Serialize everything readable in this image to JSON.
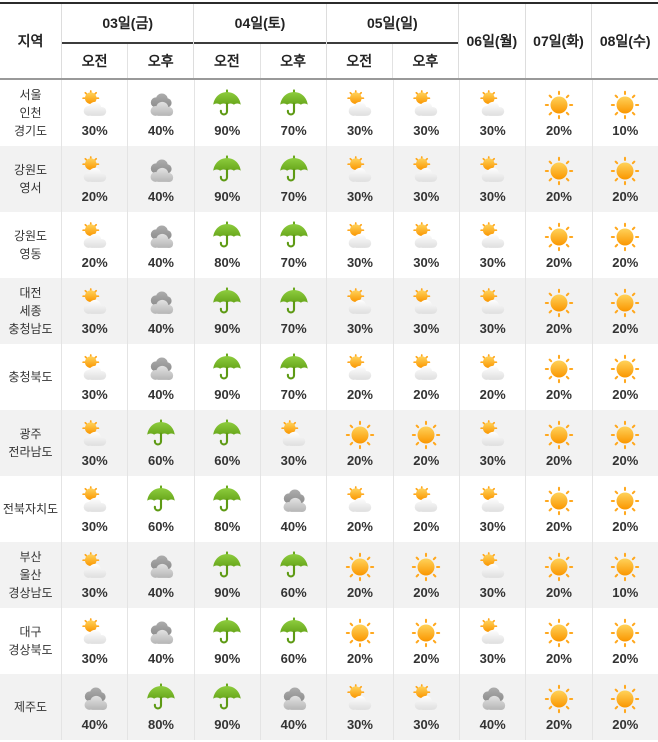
{
  "table": {
    "region_header": "지역",
    "day_groups": [
      {
        "label": "03일(금)",
        "sub": [
          "오전",
          "오후"
        ]
      },
      {
        "label": "04일(토)",
        "sub": [
          "오전",
          "오후"
        ]
      },
      {
        "label": "05일(일)",
        "sub": [
          "오전",
          "오후"
        ]
      }
    ],
    "single_days": [
      "06일(월)",
      "07일(화)",
      "08일(수)"
    ],
    "rows": [
      {
        "region": [
          "서울",
          "인천",
          "경기도"
        ],
        "cells": [
          {
            "icon": "partly-cloudy",
            "value": "30%"
          },
          {
            "icon": "cloudy",
            "value": "40%"
          },
          {
            "icon": "rain-umbrella",
            "value": "90%"
          },
          {
            "icon": "rain-umbrella",
            "value": "70%"
          },
          {
            "icon": "partly-cloudy",
            "value": "30%"
          },
          {
            "icon": "partly-cloudy",
            "value": "30%"
          },
          {
            "icon": "partly-cloudy",
            "value": "30%"
          },
          {
            "icon": "sunny",
            "value": "20%"
          },
          {
            "icon": "sunny",
            "value": "10%"
          }
        ]
      },
      {
        "region": [
          "강원도",
          "영서"
        ],
        "cells": [
          {
            "icon": "partly-cloudy",
            "value": "20%"
          },
          {
            "icon": "cloudy",
            "value": "40%"
          },
          {
            "icon": "rain-umbrella",
            "value": "90%"
          },
          {
            "icon": "rain-umbrella",
            "value": "70%"
          },
          {
            "icon": "partly-cloudy",
            "value": "30%"
          },
          {
            "icon": "partly-cloudy",
            "value": "30%"
          },
          {
            "icon": "partly-cloudy",
            "value": "30%"
          },
          {
            "icon": "sunny",
            "value": "20%"
          },
          {
            "icon": "sunny",
            "value": "20%"
          }
        ]
      },
      {
        "region": [
          "강원도",
          "영동"
        ],
        "cells": [
          {
            "icon": "partly-cloudy",
            "value": "20%"
          },
          {
            "icon": "cloudy",
            "value": "40%"
          },
          {
            "icon": "rain-umbrella",
            "value": "80%"
          },
          {
            "icon": "rain-umbrella",
            "value": "70%"
          },
          {
            "icon": "partly-cloudy",
            "value": "30%"
          },
          {
            "icon": "partly-cloudy",
            "value": "30%"
          },
          {
            "icon": "partly-cloudy",
            "value": "30%"
          },
          {
            "icon": "sunny",
            "value": "20%"
          },
          {
            "icon": "sunny",
            "value": "20%"
          }
        ]
      },
      {
        "region": [
          "대전",
          "세종",
          "충청남도"
        ],
        "cells": [
          {
            "icon": "partly-cloudy",
            "value": "30%"
          },
          {
            "icon": "cloudy",
            "value": "40%"
          },
          {
            "icon": "rain-umbrella",
            "value": "90%"
          },
          {
            "icon": "rain-umbrella",
            "value": "70%"
          },
          {
            "icon": "partly-cloudy",
            "value": "30%"
          },
          {
            "icon": "partly-cloudy",
            "value": "30%"
          },
          {
            "icon": "partly-cloudy",
            "value": "30%"
          },
          {
            "icon": "sunny",
            "value": "20%"
          },
          {
            "icon": "sunny",
            "value": "20%"
          }
        ]
      },
      {
        "region": [
          "충청북도"
        ],
        "cells": [
          {
            "icon": "partly-cloudy",
            "value": "30%"
          },
          {
            "icon": "cloudy",
            "value": "40%"
          },
          {
            "icon": "rain-umbrella",
            "value": "90%"
          },
          {
            "icon": "rain-umbrella",
            "value": "70%"
          },
          {
            "icon": "partly-cloudy",
            "value": "20%"
          },
          {
            "icon": "partly-cloudy",
            "value": "20%"
          },
          {
            "icon": "partly-cloudy",
            "value": "20%"
          },
          {
            "icon": "sunny",
            "value": "20%"
          },
          {
            "icon": "sunny",
            "value": "20%"
          }
        ]
      },
      {
        "region": [
          "광주",
          "전라남도"
        ],
        "cells": [
          {
            "icon": "partly-cloudy",
            "value": "30%"
          },
          {
            "icon": "rain-umbrella",
            "value": "60%"
          },
          {
            "icon": "rain-umbrella",
            "value": "60%"
          },
          {
            "icon": "partly-cloudy",
            "value": "30%"
          },
          {
            "icon": "sunny",
            "value": "20%"
          },
          {
            "icon": "sunny",
            "value": "20%"
          },
          {
            "icon": "partly-cloudy",
            "value": "30%"
          },
          {
            "icon": "sunny",
            "value": "20%"
          },
          {
            "icon": "sunny",
            "value": "20%"
          }
        ]
      },
      {
        "region": [
          "전북자치도"
        ],
        "cells": [
          {
            "icon": "partly-cloudy",
            "value": "30%"
          },
          {
            "icon": "rain-umbrella",
            "value": "60%"
          },
          {
            "icon": "rain-umbrella",
            "value": "80%"
          },
          {
            "icon": "cloudy",
            "value": "40%"
          },
          {
            "icon": "partly-cloudy",
            "value": "20%"
          },
          {
            "icon": "partly-cloudy",
            "value": "20%"
          },
          {
            "icon": "partly-cloudy",
            "value": "30%"
          },
          {
            "icon": "sunny",
            "value": "20%"
          },
          {
            "icon": "sunny",
            "value": "20%"
          }
        ]
      },
      {
        "region": [
          "부산",
          "울산",
          "경상남도"
        ],
        "cells": [
          {
            "icon": "partly-cloudy",
            "value": "30%"
          },
          {
            "icon": "cloudy",
            "value": "40%"
          },
          {
            "icon": "rain-umbrella",
            "value": "90%"
          },
          {
            "icon": "rain-umbrella",
            "value": "60%"
          },
          {
            "icon": "sunny",
            "value": "20%"
          },
          {
            "icon": "sunny",
            "value": "20%"
          },
          {
            "icon": "partly-cloudy",
            "value": "30%"
          },
          {
            "icon": "sunny",
            "value": "20%"
          },
          {
            "icon": "sunny",
            "value": "10%"
          }
        ]
      },
      {
        "region": [
          "대구",
          "경상북도"
        ],
        "cells": [
          {
            "icon": "partly-cloudy",
            "value": "30%"
          },
          {
            "icon": "cloudy",
            "value": "40%"
          },
          {
            "icon": "rain-umbrella",
            "value": "90%"
          },
          {
            "icon": "rain-umbrella",
            "value": "60%"
          },
          {
            "icon": "sunny",
            "value": "20%"
          },
          {
            "icon": "sunny",
            "value": "20%"
          },
          {
            "icon": "partly-cloudy",
            "value": "30%"
          },
          {
            "icon": "sunny",
            "value": "20%"
          },
          {
            "icon": "sunny",
            "value": "20%"
          }
        ]
      },
      {
        "region": [
          "제주도"
        ],
        "cells": [
          {
            "icon": "cloudy",
            "value": "40%"
          },
          {
            "icon": "rain-umbrella",
            "value": "80%"
          },
          {
            "icon": "rain-umbrella",
            "value": "90%"
          },
          {
            "icon": "cloudy",
            "value": "40%"
          },
          {
            "icon": "partly-cloudy",
            "value": "30%"
          },
          {
            "icon": "partly-cloudy",
            "value": "30%"
          },
          {
            "icon": "cloudy",
            "value": "40%"
          },
          {
            "icon": "sunny",
            "value": "20%"
          },
          {
            "icon": "sunny",
            "value": "20%"
          }
        ]
      }
    ]
  },
  "colors": {
    "umbrella_green": "#76B82A",
    "umbrella_handle_green": "#5E9A14",
    "sun_yellow": "#FFD25A",
    "sun_orange": "#FA9600",
    "sun_ray": "#FFA81E",
    "cloud_white": "#FFFFFF",
    "cloud_light_gray": "#BDBDBD",
    "cloud_dark_gray": "#949494",
    "row_alt_bg": "#F2F2F2",
    "header_text": "#222222",
    "body_text": "#333333",
    "border_dark": "#2B2B2B",
    "border_light": "#DDDDDD"
  }
}
